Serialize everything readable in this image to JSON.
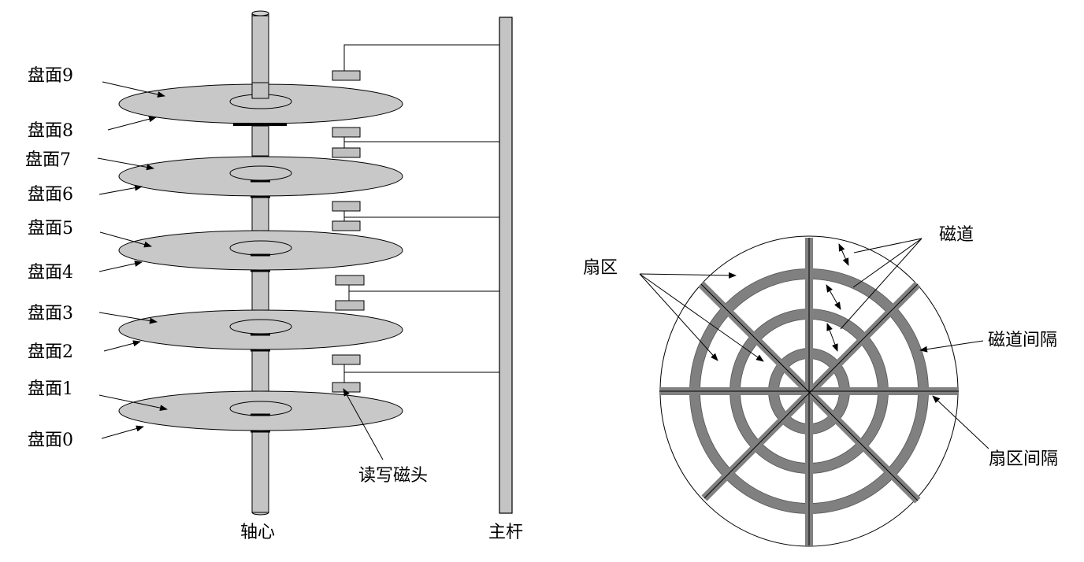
{
  "left_diagram": {
    "surface_labels": [
      "盘面9",
      "盘面8",
      "盘面7",
      "盘面6",
      "盘面5",
      "盘面4",
      "盘面3",
      "盘面2",
      "盘面1",
      "盘面0"
    ],
    "head_label": "读写磁头",
    "spindle_label": "轴心",
    "arm_label": "主杆"
  },
  "right_diagram": {
    "track_label": "磁道",
    "sector_label": "扇区",
    "track_gap_label": "磁道间隔",
    "sector_gap_label": "扇区间隔"
  },
  "colors": {
    "platter_fill": "#c8c8c8",
    "head_fill": "#c0c0c0",
    "gap_band": "#808080",
    "line": "#000000"
  }
}
